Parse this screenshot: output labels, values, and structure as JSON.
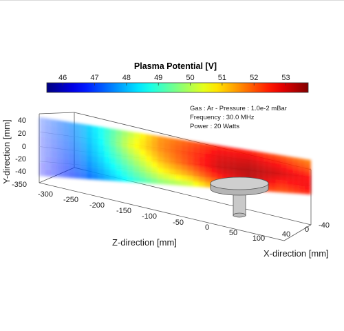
{
  "chart_data": {
    "type": "heatmap",
    "title": "Plasma Potential [V]",
    "colorbar": {
      "ticks": [
        46,
        47,
        48,
        49,
        50,
        51,
        52,
        53
      ],
      "range": [
        45.5,
        53.7
      ],
      "colormap": "jet"
    },
    "annotations": [
      "Gas : Ar - Pressure : 1.0e-2 mBar",
      "Frequency : 30.0 MHz",
      "Power : 20 Watts"
    ],
    "axes": {
      "y": {
        "label": "Y-direction [mm]",
        "ticks": [
          "40",
          "20",
          "0",
          "-20",
          "-40"
        ],
        "range": [
          -40,
          40
        ]
      },
      "z": {
        "label": "Z-direction [mm]",
        "ticks": [
          "-350",
          "-300",
          "-250",
          "-200",
          "-150",
          "-100",
          "-50",
          "0",
          "50",
          "100"
        ],
        "range": [
          -350,
          100
        ]
      },
      "x": {
        "label": "X-direction [mm]",
        "ticks": [
          "40",
          "0",
          "-40"
        ],
        "range": [
          -40,
          40
        ]
      }
    },
    "z_samples": [
      -350,
      -300,
      -250,
      -200,
      -150,
      -100,
      -50,
      0,
      50,
      100
    ],
    "y_samples": [
      40,
      20,
      0,
      -20,
      -40
    ],
    "potential_grid_V": [
      [
        47.0,
        47.5,
        48.6,
        50.0,
        51.5,
        52.0,
        52.5,
        52.4,
        52.0,
        51.6
      ],
      [
        46.8,
        47.4,
        48.5,
        50.4,
        51.6,
        52.3,
        52.9,
        53.0,
        52.6,
        52.0
      ],
      [
        46.7,
        47.2,
        48.3,
        49.8,
        51.2,
        52.2,
        53.1,
        53.3,
        53.0,
        52.6
      ],
      [
        46.6,
        47.0,
        48.0,
        49.2,
        50.5,
        51.4,
        52.6,
        53.2,
        52.5,
        52.8
      ],
      [
        46.5,
        46.8,
        47.6,
        48.6,
        49.5,
        50.0,
        51.5,
        52.3,
        52.0,
        52.5
      ]
    ],
    "grid": true
  }
}
